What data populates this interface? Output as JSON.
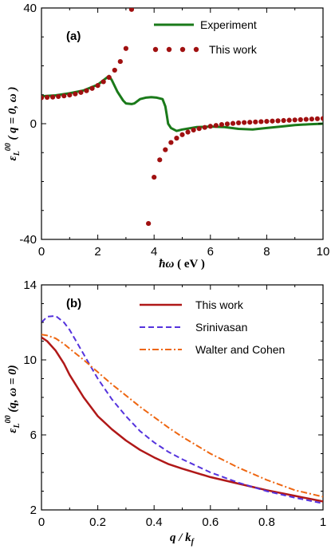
{
  "chart_data": [
    {
      "type": "line",
      "panel_label": "(a)",
      "xlabel": "ħω ( eV )",
      "ylabel": "ε_L^00 ( q = 0, ω )",
      "xlim": [
        0,
        10
      ],
      "ylim": [
        -40,
        40
      ],
      "xticks": [
        "0",
        "2",
        "4",
        "6",
        "8",
        "10"
      ],
      "yticks": [
        "-40",
        "0",
        "40"
      ],
      "grid": false,
      "legend_position": "top-right",
      "series": [
        {
          "name": "Experiment",
          "style": "solid",
          "color": "#1a7a1a",
          "x": [
            0,
            0.5,
            1.0,
            1.5,
            2.0,
            2.2,
            2.4,
            2.5,
            2.7,
            2.9,
            3.0,
            3.2,
            3.3,
            3.5,
            3.7,
            3.9,
            4.1,
            4.3,
            4.4,
            4.45,
            4.5,
            4.6,
            4.8,
            5.0,
            5.5,
            6.0,
            6.5,
            7.0,
            7.5,
            8.0,
            8.5,
            9.0,
            9.5,
            10.0
          ],
          "y": [
            9.5,
            9.8,
            10.5,
            11.5,
            13.5,
            15.0,
            16.5,
            15.0,
            11.0,
            8.0,
            7.0,
            6.8,
            7.0,
            8.5,
            9.0,
            9.2,
            9.0,
            8.5,
            6.0,
            3.0,
            0.0,
            -1.5,
            -2.5,
            -2.0,
            -1.2,
            -1.0,
            -1.2,
            -1.8,
            -2.0,
            -1.5,
            -1.0,
            -0.5,
            -0.2,
            0.0
          ]
        },
        {
          "name": "This work",
          "style": "dots",
          "color": "#a01010",
          "x": [
            0,
            0.2,
            0.4,
            0.6,
            0.8,
            1.0,
            1.2,
            1.4,
            1.6,
            1.8,
            2.0,
            2.2,
            2.4,
            2.6,
            2.8,
            3.0,
            3.2,
            3.8,
            4.0,
            4.2,
            4.4,
            4.6,
            4.8,
            5.0,
            5.2,
            5.4,
            5.6,
            5.8,
            6.0,
            6.2,
            6.4,
            6.6,
            6.8,
            7.0,
            7.2,
            7.4,
            7.6,
            7.8,
            8.0,
            8.2,
            8.4,
            8.6,
            8.8,
            9.0,
            9.2,
            9.4,
            9.6,
            9.8,
            10.0
          ],
          "y": [
            9.0,
            9.1,
            9.2,
            9.4,
            9.6,
            9.9,
            10.3,
            10.8,
            11.4,
            12.2,
            13.2,
            14.5,
            16.0,
            18.5,
            21.5,
            26.0,
            39.5,
            -34.5,
            -18.5,
            -12.5,
            -9.0,
            -6.5,
            -5.0,
            -3.8,
            -2.9,
            -2.2,
            -1.7,
            -1.3,
            -0.9,
            -0.6,
            -0.3,
            -0.1,
            0.1,
            0.3,
            0.4,
            0.5,
            0.6,
            0.7,
            0.8,
            0.9,
            1.0,
            1.1,
            1.2,
            1.3,
            1.4,
            1.5,
            1.6,
            1.7,
            1.8
          ]
        }
      ]
    },
    {
      "type": "line",
      "panel_label": "(b)",
      "xlabel": "q / k_f",
      "ylabel": "ε_L^00 (q, ω = 0)",
      "xlim": [
        0,
        1
      ],
      "ylim": [
        2,
        14
      ],
      "xticks": [
        "0",
        "0.2",
        "0.4",
        "0.6",
        "0.8",
        "1"
      ],
      "yticks": [
        "2",
        "6",
        "10",
        "14"
      ],
      "grid": false,
      "legend_position": "top-right",
      "series": [
        {
          "name": "This work",
          "style": "solid",
          "color": "#b01818",
          "x": [
            0,
            0.02,
            0.05,
            0.08,
            0.1,
            0.15,
            0.2,
            0.25,
            0.3,
            0.35,
            0.4,
            0.45,
            0.5,
            0.6,
            0.7,
            0.8,
            0.9,
            1.0
          ],
          "y": [
            11.2,
            11.0,
            10.5,
            9.8,
            9.2,
            8.0,
            7.0,
            6.3,
            5.7,
            5.2,
            4.8,
            4.45,
            4.2,
            3.75,
            3.4,
            3.05,
            2.75,
            2.45
          ]
        },
        {
          "name": "Srinivasan",
          "style": "dashed",
          "color": "#5533dd",
          "x": [
            0,
            0.02,
            0.05,
            0.08,
            0.1,
            0.15,
            0.2,
            0.25,
            0.3,
            0.35,
            0.4,
            0.45,
            0.5,
            0.6,
            0.7,
            0.8,
            0.9,
            1.0
          ],
          "y": [
            12.0,
            12.3,
            12.35,
            12.0,
            11.6,
            10.3,
            9.0,
            7.9,
            7.0,
            6.2,
            5.6,
            5.1,
            4.7,
            4.0,
            3.45,
            3.0,
            2.65,
            2.35
          ]
        },
        {
          "name": "Walter and Cohen",
          "style": "dashdot",
          "color": "#ee6611",
          "x": [
            0,
            0.02,
            0.05,
            0.08,
            0.1,
            0.15,
            0.2,
            0.25,
            0.3,
            0.35,
            0.4,
            0.45,
            0.5,
            0.6,
            0.7,
            0.8,
            0.9,
            1.0
          ],
          "y": [
            11.35,
            11.3,
            11.15,
            10.85,
            10.6,
            10.0,
            9.35,
            8.7,
            8.1,
            7.5,
            6.95,
            6.4,
            5.9,
            5.0,
            4.25,
            3.6,
            3.05,
            2.7
          ]
        }
      ]
    }
  ]
}
